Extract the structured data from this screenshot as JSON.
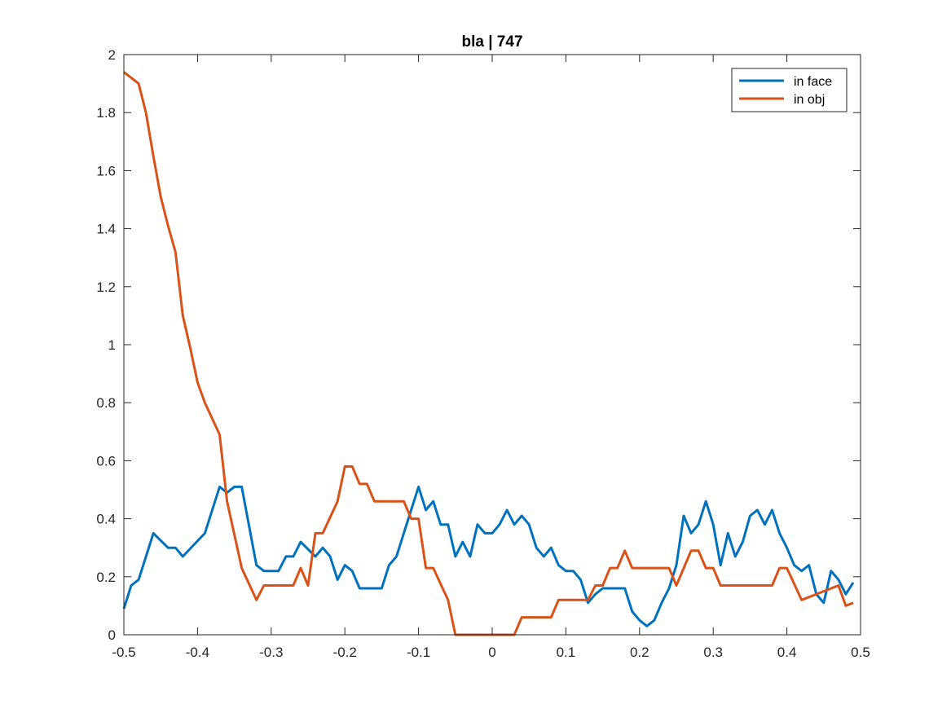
{
  "chart_data": {
    "type": "line",
    "title": "bla | 747",
    "xlabel": "",
    "ylabel": "",
    "xlim": [
      -0.5,
      0.5
    ],
    "ylim": [
      0,
      2
    ],
    "xticks": [
      "-0.5",
      "-0.4",
      "-0.3",
      "-0.2",
      "-0.1",
      "0",
      "0.1",
      "0.2",
      "0.3",
      "0.4",
      "0.5"
    ],
    "yticks": [
      "0",
      "0.2",
      "0.4",
      "0.6",
      "0.8",
      "1",
      "1.2",
      "1.4",
      "1.6",
      "1.8",
      "2"
    ],
    "grid": false,
    "legend_position": "top-right",
    "series": [
      {
        "name": "in face",
        "color": "#0072BD",
        "x": [
          -0.5,
          -0.49,
          -0.48,
          -0.46,
          -0.44,
          -0.43,
          -0.42,
          -0.39,
          -0.37,
          -0.36,
          -0.35,
          -0.34,
          -0.32,
          -0.31,
          -0.29,
          -0.28,
          -0.27,
          -0.26,
          -0.24,
          -0.23,
          -0.22,
          -0.21,
          -0.2,
          -0.19,
          -0.18,
          -0.17,
          -0.15,
          -0.14,
          -0.13,
          -0.12,
          -0.1,
          -0.09,
          -0.08,
          -0.07,
          -0.06,
          -0.05,
          -0.04,
          -0.03,
          -0.02,
          -0.01,
          0.0,
          0.01,
          0.02,
          0.03,
          0.04,
          0.05,
          0.06,
          0.07,
          0.08,
          0.09,
          0.1,
          0.11,
          0.12,
          0.13,
          0.14,
          0.15,
          0.17,
          0.18,
          0.19,
          0.2,
          0.21,
          0.22,
          0.23,
          0.24,
          0.25,
          0.26,
          0.27,
          0.28,
          0.29,
          0.3,
          0.31,
          0.32,
          0.33,
          0.34,
          0.35,
          0.36,
          0.37,
          0.38,
          0.39,
          0.4,
          0.41,
          0.42,
          0.43,
          0.44,
          0.45,
          0.46,
          0.47,
          0.48,
          0.49
        ],
        "values": [
          0.09,
          0.17,
          0.19,
          0.35,
          0.3,
          0.3,
          0.27,
          0.35,
          0.51,
          0.49,
          0.51,
          0.51,
          0.24,
          0.22,
          0.22,
          0.27,
          0.27,
          0.32,
          0.27,
          0.3,
          0.27,
          0.19,
          0.24,
          0.22,
          0.16,
          0.16,
          0.16,
          0.24,
          0.27,
          0.35,
          0.51,
          0.43,
          0.46,
          0.38,
          0.38,
          0.27,
          0.32,
          0.27,
          0.38,
          0.35,
          0.35,
          0.38,
          0.43,
          0.38,
          0.41,
          0.38,
          0.3,
          0.27,
          0.3,
          0.24,
          0.22,
          0.22,
          0.19,
          0.11,
          0.14,
          0.16,
          0.16,
          0.16,
          0.08,
          0.05,
          0.03,
          0.05,
          0.11,
          0.16,
          0.24,
          0.41,
          0.35,
          0.38,
          0.46,
          0.38,
          0.24,
          0.35,
          0.27,
          0.32,
          0.41,
          0.43,
          0.38,
          0.43,
          0.35,
          0.3,
          0.24,
          0.22,
          0.24,
          0.14,
          0.11,
          0.22,
          0.19,
          0.14,
          0.18
        ]
      },
      {
        "name": "in obj",
        "color": "#D95319",
        "x": [
          -0.5,
          -0.48,
          -0.47,
          -0.46,
          -0.45,
          -0.44,
          -0.43,
          -0.42,
          -0.41,
          -0.4,
          -0.39,
          -0.37,
          -0.36,
          -0.34,
          -0.32,
          -0.31,
          -0.27,
          -0.26,
          -0.25,
          -0.24,
          -0.23,
          -0.21,
          -0.2,
          -0.19,
          -0.18,
          -0.17,
          -0.16,
          -0.13,
          -0.12,
          -0.11,
          -0.1,
          -0.09,
          -0.08,
          -0.06,
          -0.05,
          0.03,
          0.04,
          0.08,
          0.09,
          0.13,
          0.14,
          0.15,
          0.16,
          0.17,
          0.18,
          0.19,
          0.24,
          0.25,
          0.27,
          0.28,
          0.29,
          0.3,
          0.31,
          0.38,
          0.39,
          0.4,
          0.42,
          0.47,
          0.48,
          0.49
        ],
        "values": [
          1.94,
          1.9,
          1.8,
          1.65,
          1.51,
          1.41,
          1.32,
          1.1,
          0.99,
          0.87,
          0.8,
          0.69,
          0.46,
          0.23,
          0.12,
          0.17,
          0.17,
          0.23,
          0.17,
          0.35,
          0.35,
          0.46,
          0.58,
          0.58,
          0.52,
          0.52,
          0.46,
          0.46,
          0.46,
          0.4,
          0.4,
          0.23,
          0.23,
          0.12,
          0.0,
          0.0,
          0.06,
          0.06,
          0.12,
          0.12,
          0.17,
          0.17,
          0.23,
          0.23,
          0.29,
          0.23,
          0.23,
          0.17,
          0.29,
          0.29,
          0.23,
          0.23,
          0.17,
          0.17,
          0.23,
          0.23,
          0.12,
          0.17,
          0.1,
          0.11
        ]
      }
    ]
  }
}
